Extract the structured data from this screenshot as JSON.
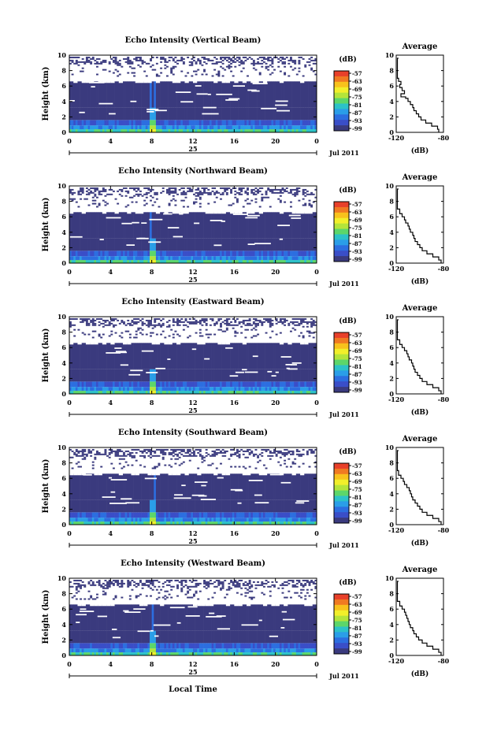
{
  "chart_data": {
    "type": "heatmap",
    "x_tick_labels": [
      "0",
      "4",
      "8",
      "12",
      "16",
      "20",
      "0"
    ],
    "x_day_label": "25",
    "x_period_label": "Jul 2011",
    "xlabel": "Local Time",
    "ylabel": "Height (km)",
    "y_tick_labels": [
      "0",
      "2",
      "4",
      "6",
      "8",
      "10"
    ],
    "xlim": [
      0,
      24
    ],
    "ylim": [
      0,
      10
    ],
    "colorbar": {
      "unit": "(dB)",
      "tick_labels": [
        "-57",
        "-63",
        "-69",
        "-75",
        "-81",
        "-87",
        "-93",
        "-99"
      ],
      "colors": [
        "#e8402a",
        "#f07a22",
        "#f8c21c",
        "#f2ef2a",
        "#b4e43a",
        "#5cd66a",
        "#2cc2c8",
        "#2a9ee8",
        "#2c6ee0",
        "#3a4ec8",
        "#3a3a7e"
      ]
    },
    "average_profile": {
      "title": "Average",
      "xlabel": "(dB)",
      "x_tick_labels": [
        "-120",
        "-80"
      ],
      "xlim": [
        -120,
        -80
      ],
      "y_tick_labels": [
        "0",
        "2",
        "4",
        "6",
        "8",
        "10"
      ],
      "ylim": [
        0,
        10
      ]
    },
    "panels": [
      {
        "title": "Echo Intensity (Vertical Beam)",
        "profile": [
          [
            0,
            -84
          ],
          [
            0.4,
            -85
          ],
          [
            0.8,
            -90
          ],
          [
            1.2,
            -95
          ],
          [
            1.6,
            -99
          ],
          [
            2.0,
            -101
          ],
          [
            2.4,
            -103
          ],
          [
            2.8,
            -105
          ],
          [
            3.2,
            -106
          ],
          [
            3.6,
            -108
          ],
          [
            4.0,
            -110
          ],
          [
            4.4,
            -112
          ],
          [
            4.6,
            -116
          ],
          [
            5.0,
            -113
          ],
          [
            5.4,
            -115
          ],
          [
            5.8,
            -117
          ],
          [
            6.2,
            -116
          ],
          [
            6.6,
            -118
          ],
          [
            7.0,
            -119
          ],
          [
            8.0,
            -119
          ],
          [
            9.0,
            -119
          ],
          [
            9.6,
            -118
          ]
        ]
      },
      {
        "title": "Echo Intensity (Northward Beam)",
        "profile": [
          [
            0,
            -82
          ],
          [
            0.4,
            -84
          ],
          [
            0.8,
            -89
          ],
          [
            1.2,
            -94
          ],
          [
            1.6,
            -98
          ],
          [
            2.0,
            -100
          ],
          [
            2.4,
            -102
          ],
          [
            2.8,
            -104
          ],
          [
            3.2,
            -105
          ],
          [
            3.6,
            -106
          ],
          [
            4.0,
            -108
          ],
          [
            4.4,
            -109
          ],
          [
            4.8,
            -110
          ],
          [
            5.2,
            -112
          ],
          [
            5.6,
            -113
          ],
          [
            6.0,
            -115
          ],
          [
            6.4,
            -117
          ],
          [
            7.0,
            -119
          ],
          [
            8.0,
            -119
          ],
          [
            9.0,
            -119
          ],
          [
            9.6,
            -118
          ]
        ]
      },
      {
        "title": "Echo Intensity (Eastward Beam)",
        "profile": [
          [
            0,
            -82
          ],
          [
            0.4,
            -84
          ],
          [
            0.8,
            -89
          ],
          [
            1.2,
            -94
          ],
          [
            1.6,
            -98
          ],
          [
            2.0,
            -100
          ],
          [
            2.4,
            -102
          ],
          [
            2.8,
            -104
          ],
          [
            3.2,
            -105
          ],
          [
            3.6,
            -106
          ],
          [
            4.0,
            -107
          ],
          [
            4.4,
            -109
          ],
          [
            4.8,
            -110
          ],
          [
            5.2,
            -111
          ],
          [
            5.6,
            -113
          ],
          [
            6.0,
            -115
          ],
          [
            6.4,
            -117
          ],
          [
            7.0,
            -119
          ],
          [
            8.0,
            -119
          ],
          [
            9.0,
            -119
          ],
          [
            9.6,
            -118
          ]
        ]
      },
      {
        "title": "Echo Intensity (Southward Beam)",
        "profile": [
          [
            0,
            -82
          ],
          [
            0.4,
            -84
          ],
          [
            0.8,
            -89
          ],
          [
            1.2,
            -94
          ],
          [
            1.6,
            -98
          ],
          [
            2.0,
            -100
          ],
          [
            2.4,
            -102
          ],
          [
            2.8,
            -104
          ],
          [
            3.2,
            -106
          ],
          [
            3.6,
            -107
          ],
          [
            4.0,
            -108
          ],
          [
            4.4,
            -109
          ],
          [
            4.8,
            -111
          ],
          [
            5.2,
            -113
          ],
          [
            5.6,
            -114
          ],
          [
            6.0,
            -116
          ],
          [
            6.4,
            -118
          ],
          [
            7.0,
            -119
          ],
          [
            8.0,
            -119
          ],
          [
            9.0,
            -119
          ],
          [
            9.6,
            -118
          ]
        ]
      },
      {
        "title": "Echo Intensity (Westward Beam)",
        "profile": [
          [
            0,
            -82
          ],
          [
            0.4,
            -84
          ],
          [
            0.8,
            -89
          ],
          [
            1.2,
            -94
          ],
          [
            1.6,
            -98
          ],
          [
            2.0,
            -101
          ],
          [
            2.4,
            -103
          ],
          [
            2.8,
            -105
          ],
          [
            3.2,
            -106
          ],
          [
            3.6,
            -108
          ],
          [
            4.0,
            -109
          ],
          [
            4.4,
            -110
          ],
          [
            4.8,
            -111
          ],
          [
            5.2,
            -112
          ],
          [
            5.6,
            -113
          ],
          [
            6.0,
            -115
          ],
          [
            6.4,
            -117
          ],
          [
            7.0,
            -119
          ],
          [
            8.0,
            -119
          ],
          [
            9.0,
            -119
          ],
          [
            9.6,
            -118
          ]
        ]
      }
    ]
  }
}
